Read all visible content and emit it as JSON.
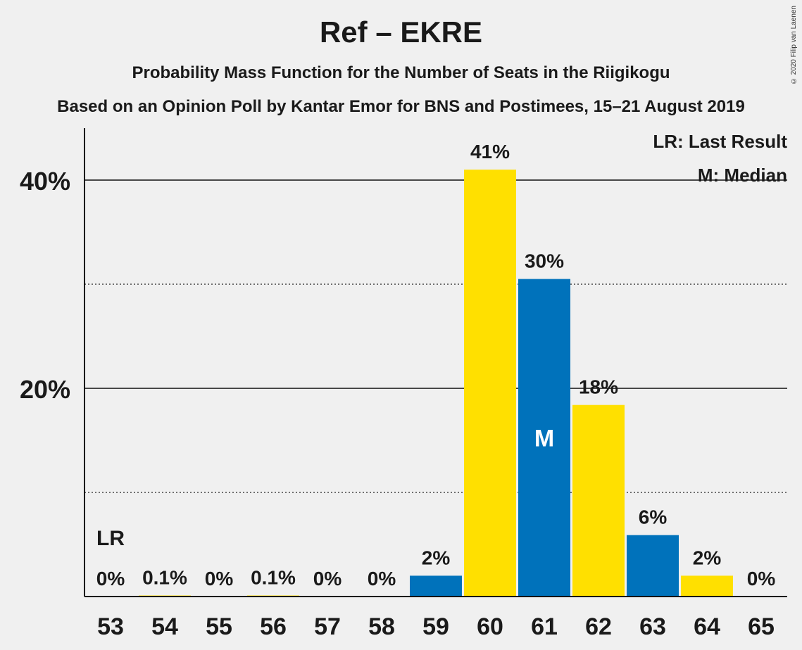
{
  "chart_data": {
    "type": "bar",
    "title": "Ref – EKRE",
    "subtitle_1": "Probability Mass Function for the Number of Seats in the Riigikogu",
    "subtitle_2": "Based on an Opinion Poll by Kantar Emor for BNS and Postimees, 15–21 August 2019",
    "copyright": "© 2020 Filip van Laenen",
    "categories": [
      "53",
      "54",
      "55",
      "56",
      "57",
      "58",
      "59",
      "60",
      "61",
      "62",
      "63",
      "64",
      "65"
    ],
    "values": [
      0,
      0.1,
      0,
      0.1,
      0,
      0,
      2,
      41,
      30.5,
      18.4,
      5.9,
      2,
      0
    ],
    "value_labels": [
      "0%",
      "0.1%",
      "0%",
      "0.1%",
      "0%",
      "0%",
      "2%",
      "41%",
      "30%",
      "18%",
      "6%",
      "2%",
      "0%"
    ],
    "bar_colors": [
      "#0072bb",
      "#ffe000",
      "#0072bb",
      "#ffe000",
      "#0072bb",
      "#ffe000",
      "#0072bb",
      "#ffe000",
      "#0072bb",
      "#ffe000",
      "#0072bb",
      "#ffe000",
      "#0072bb"
    ],
    "ylim": [
      0,
      45
    ],
    "yticks_major": [
      20,
      40
    ],
    "ytick_labels": [
      "20%",
      "40%"
    ],
    "yticks_minor": [
      10,
      30
    ],
    "grid": true,
    "last_result_category": "53",
    "last_result_marker": "LR",
    "median_category": "61",
    "median_marker": "M",
    "legend": [
      "LR: Last Result",
      "M: Median"
    ],
    "legend_placement": "top-right"
  }
}
